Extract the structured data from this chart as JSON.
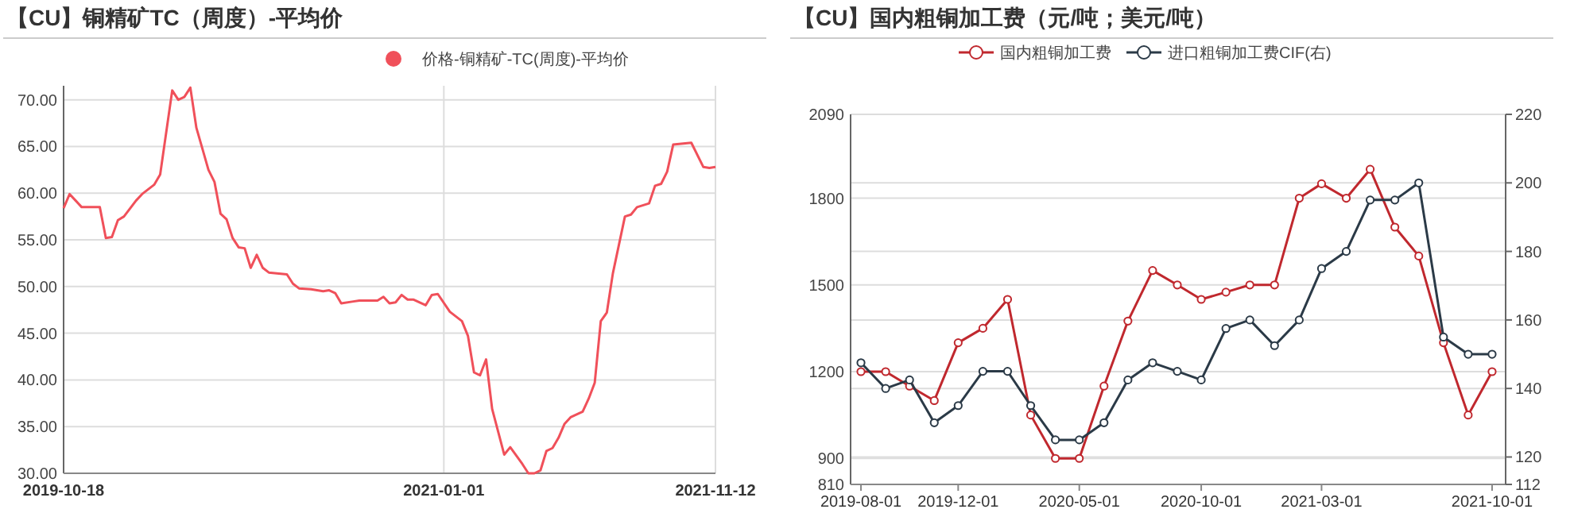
{
  "chart_data": [
    {
      "type": "line",
      "title": "【CU】铜精矿TC（周度）-平均价",
      "legend": "top right",
      "grid": true,
      "marker": "none",
      "xlim": [
        "2019-10-18",
        "2021-11-12"
      ],
      "xticks": [
        {
          "value": "2019-10-18",
          "label": "2019-10-18"
        },
        {
          "value": "2021-01-01",
          "label": "2021-01-01"
        },
        {
          "value": "2021-11-12",
          "label": "2021-11-12"
        }
      ],
      "ylim": [
        30,
        71.5
      ],
      "yticks": [
        {
          "value": 30,
          "label": "30.00"
        },
        {
          "value": 35,
          "label": "35.00"
        },
        {
          "value": 40,
          "label": "40.00"
        },
        {
          "value": 45,
          "label": "45.00"
        },
        {
          "value": 50,
          "label": "50.00"
        },
        {
          "value": 55,
          "label": "55.00"
        },
        {
          "value": 60,
          "label": "60.00"
        },
        {
          "value": 65,
          "label": "65.00"
        },
        {
          "value": 70,
          "label": "70.00"
        }
      ],
      "x": [
        "2019-10-18",
        "2019-10-25",
        "2019-11-01",
        "2019-11-08",
        "2019-11-29",
        "2019-12-06",
        "2019-12-13",
        "2019-12-20",
        "2019-12-27",
        "2020-01-10",
        "2020-01-17",
        "2020-01-31",
        "2020-02-07",
        "2020-02-21",
        "2020-02-28",
        "2020-03-06",
        "2020-03-13",
        "2020-03-20",
        "2020-04-03",
        "2020-04-10",
        "2020-04-17",
        "2020-04-24",
        "2020-05-01",
        "2020-05-08",
        "2020-05-15",
        "2020-05-22",
        "2020-05-29",
        "2020-06-05",
        "2020-06-12",
        "2020-07-03",
        "2020-07-10",
        "2020-07-17",
        "2020-07-31",
        "2020-08-14",
        "2020-08-21",
        "2020-08-28",
        "2020-09-04",
        "2020-09-18",
        "2020-09-25",
        "2020-10-16",
        "2020-10-23",
        "2020-10-30",
        "2020-11-06",
        "2020-11-13",
        "2020-11-20",
        "2020-11-27",
        "2020-12-11",
        "2020-12-18",
        "2020-12-25",
        "2021-01-08",
        "2021-01-22",
        "2021-01-29",
        "2021-02-05",
        "2021-02-12",
        "2021-02-19",
        "2021-02-26",
        "2021-03-12",
        "2021-03-19",
        "2021-04-02",
        "2021-04-09",
        "2021-04-16",
        "2021-04-23",
        "2021-04-30",
        "2021-05-07",
        "2021-05-14",
        "2021-05-21",
        "2021-05-28",
        "2021-06-11",
        "2021-06-18",
        "2021-06-25",
        "2021-07-02",
        "2021-07-09",
        "2021-07-16",
        "2021-07-30",
        "2021-08-06",
        "2021-08-13",
        "2021-08-27",
        "2021-09-03",
        "2021-09-10",
        "2021-09-17",
        "2021-09-24",
        "2021-10-15",
        "2021-10-29",
        "2021-11-05",
        "2021-11-12"
      ],
      "series": [
        {
          "name": "价格-铜精矿-TC(周度)-平均价",
          "color": "#f0505a",
          "values": [
            58.4,
            59.9,
            59.2,
            58.5,
            58.5,
            55.2,
            55.3,
            57.1,
            57.5,
            59.2,
            59.9,
            60.9,
            62.0,
            71.0,
            70.0,
            70.3,
            71.3,
            67.0,
            62.5,
            61.2,
            57.8,
            57.2,
            55.2,
            54.2,
            54.1,
            52.0,
            53.4,
            52.0,
            51.5,
            51.3,
            50.3,
            49.8,
            49.7,
            49.5,
            49.6,
            49.3,
            48.2,
            48.4,
            48.5,
            48.5,
            48.9,
            48.2,
            48.3,
            49.1,
            48.6,
            48.6,
            48.0,
            49.1,
            49.2,
            47.3,
            46.3,
            44.7,
            40.8,
            40.5,
            42.2,
            36.9,
            32.0,
            32.8,
            31.0,
            30.0,
            30.0,
            30.3,
            32.4,
            32.7,
            33.8,
            35.3,
            36.0,
            36.6,
            38.0,
            39.7,
            46.3,
            47.2,
            51.4,
            57.5,
            57.7,
            58.5,
            58.9,
            60.8,
            61.0,
            62.3,
            65.2,
            65.4,
            62.8,
            62.7,
            62.8
          ]
        }
      ]
    },
    {
      "type": "line",
      "title": "【CU】国内粗铜加工费（元/吨；美元/吨）",
      "legend": "top",
      "grid": "y",
      "marker": "circle",
      "xlim": [
        "2019-07-19",
        "2021-10-18"
      ],
      "xticks": [
        "2019-08-01",
        "2019-12-01",
        "2020-05-01",
        "2020-10-01",
        "2021-03-01",
        "2021-10-01"
      ],
      "ylim": [
        810,
        2090
      ],
      "yticks": [
        810,
        900,
        1200,
        1500,
        1800,
        2090
      ],
      "y2lim": [
        112,
        220
      ],
      "y2ticks": [
        112,
        120,
        140,
        160,
        180,
        200,
        220
      ],
      "x": [
        "2019-08-01",
        "2019-09-01",
        "2019-10-01",
        "2019-11-01",
        "2019-12-01",
        "2020-01-01",
        "2020-02-01",
        "2020-03-01",
        "2020-04-01",
        "2020-05-01",
        "2020-06-01",
        "2020-07-01",
        "2020-08-01",
        "2020-09-01",
        "2020-10-01",
        "2020-11-01",
        "2020-12-01",
        "2021-01-01",
        "2021-02-01",
        "2021-03-01",
        "2021-04-01",
        "2021-05-01",
        "2021-06-01",
        "2021-07-01",
        "2021-08-01",
        "2021-09-01",
        "2021-10-01"
      ],
      "series": [
        {
          "name": "国内粗铜加工费",
          "color": "#c0282e",
          "values": [
            1200,
            1200,
            1150,
            1100,
            1300,
            1350,
            1450,
            1050,
            900,
            900,
            1150,
            1375,
            1550,
            1500,
            1450,
            1475,
            1500,
            1500,
            1800,
            1850,
            1800,
            1900,
            1700,
            1600,
            1300,
            1050,
            1200
          ]
        },
        {
          "name": "进口粗铜加工费CIF(右)",
          "color": "#2b3a47",
          "axis": "y2",
          "values": [
            147.5,
            140,
            142.5,
            130,
            135,
            145,
            145,
            135,
            125,
            125,
            130,
            142.5,
            147.5,
            145,
            142.5,
            157.5,
            160,
            152.5,
            160,
            175,
            180,
            195,
            195,
            200,
            155,
            150,
            150
          ]
        }
      ]
    }
  ]
}
